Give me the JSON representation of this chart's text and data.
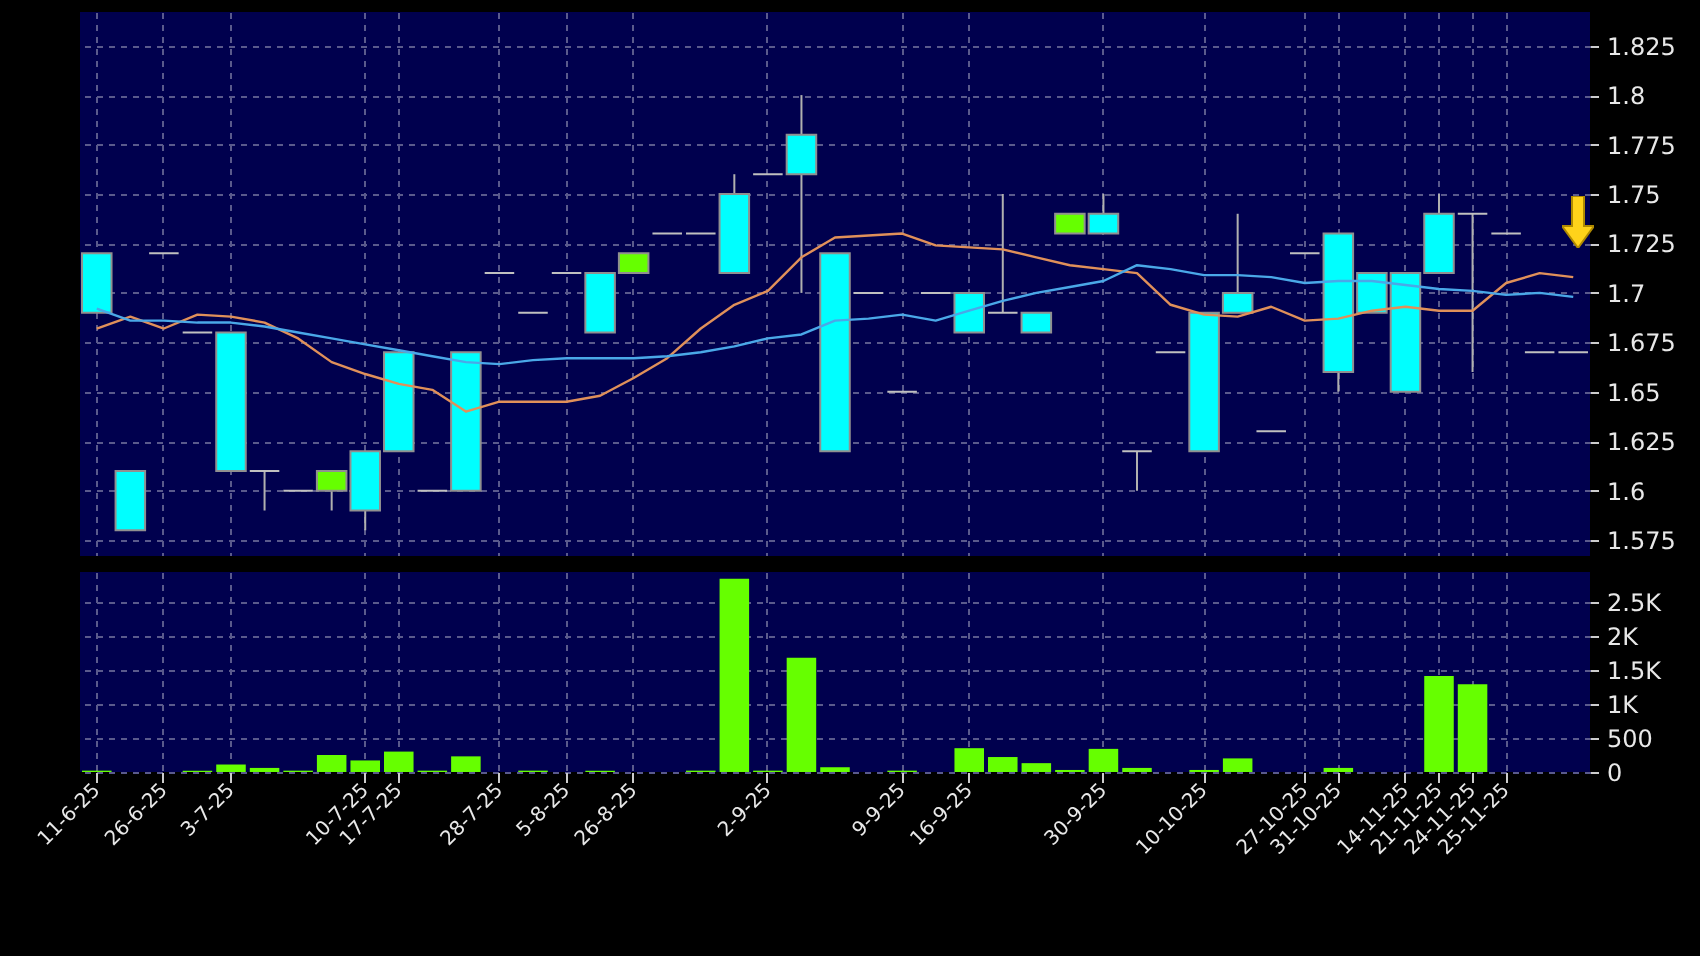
{
  "chart_data": [
    {
      "type": "candlestick",
      "categories": [
        null,
        null,
        null,
        null,
        null,
        null,
        null,
        null,
        null,
        null,
        null,
        null,
        null,
        null,
        null,
        null,
        null,
        null,
        null,
        null,
        null,
        null,
        null,
        null,
        null,
        null,
        null,
        null,
        null,
        null,
        null,
        null,
        null,
        null,
        null,
        null,
        null,
        null,
        null,
        null,
        null,
        null,
        null,
        null,
        null
      ],
      "ohlc": [
        [
          1.72,
          1.72,
          1.69,
          1.69
        ],
        [
          1.61,
          1.61,
          1.58,
          1.58
        ],
        [
          1.72,
          1.72,
          1.72,
          1.72
        ],
        [
          1.68,
          1.68,
          1.68,
          1.68
        ],
        [
          1.68,
          1.68,
          1.61,
          1.61
        ],
        [
          1.61,
          1.61,
          1.59,
          1.61
        ],
        [
          1.6,
          1.6,
          1.6,
          1.6
        ],
        [
          1.6,
          1.61,
          1.59,
          1.61
        ],
        [
          1.62,
          1.62,
          1.58,
          1.59
        ],
        [
          1.67,
          1.67,
          1.62,
          1.62
        ],
        [
          1.6,
          1.6,
          1.6,
          1.6
        ],
        [
          1.67,
          1.67,
          1.6,
          1.6
        ],
        [
          1.71,
          1.71,
          1.71,
          1.71
        ],
        [
          1.69,
          1.69,
          1.69,
          1.69
        ],
        [
          1.71,
          1.71,
          1.71,
          1.71
        ],
        [
          1.71,
          1.71,
          1.68,
          1.68
        ],
        [
          1.71,
          1.72,
          1.71,
          1.72
        ],
        [
          1.73,
          1.73,
          1.73,
          1.73
        ],
        [
          1.73,
          1.73,
          1.73,
          1.73
        ],
        [
          1.75,
          1.76,
          1.71,
          1.71
        ],
        [
          1.76,
          1.76,
          1.76,
          1.76
        ],
        [
          1.78,
          1.8,
          1.7,
          1.76
        ],
        [
          1.72,
          1.72,
          1.62,
          1.62
        ],
        [
          1.7,
          1.7,
          1.7,
          1.7
        ],
        [
          1.65,
          1.65,
          1.65,
          1.65
        ],
        [
          1.7,
          1.7,
          1.7,
          1.7
        ],
        [
          1.7,
          1.7,
          1.68,
          1.68
        ],
        [
          1.69,
          1.75,
          1.69,
          1.69
        ],
        [
          1.69,
          1.69,
          1.68,
          1.68
        ],
        [
          1.73,
          1.74,
          1.73,
          1.74
        ],
        [
          1.74,
          1.75,
          1.73,
          1.73
        ],
        [
          1.62,
          1.62,
          1.6,
          1.62
        ],
        [
          1.67,
          1.67,
          1.67,
          1.67
        ],
        [
          1.69,
          1.69,
          1.62,
          1.62
        ],
        [
          1.7,
          1.74,
          1.69,
          1.69
        ],
        [
          1.63,
          1.63,
          1.63,
          1.63
        ],
        [
          1.72,
          1.72,
          1.72,
          1.72
        ],
        [
          1.73,
          1.73,
          1.65,
          1.66
        ],
        [
          1.71,
          1.71,
          1.69,
          1.69
        ],
        [
          1.71,
          1.71,
          1.65,
          1.65
        ],
        [
          1.74,
          1.75,
          1.71,
          1.71
        ],
        [
          1.74,
          1.74,
          1.66,
          1.74
        ],
        [
          1.73,
          1.73,
          1.73,
          1.73
        ],
        [
          1.67,
          1.67,
          1.67,
          1.67
        ],
        [
          1.67,
          1.67,
          1.67,
          1.67
        ]
      ],
      "colors": [
        "#00ffff",
        "#00ffff",
        "#c0c0c0",
        "#c0c0c0",
        "#00ffff",
        "#c0c0c0",
        "#c0c0c0",
        "#66ff00",
        "#00ffff",
        "#00ffff",
        "#c0c0c0",
        "#00ffff",
        "#c0c0c0",
        "#c0c0c0",
        "#c0c0c0",
        "#00ffff",
        "#66ff00",
        "#c0c0c0",
        "#c0c0c0",
        "#00ffff",
        "#c0c0c0",
        "#00ffff",
        "#00ffff",
        "#c0c0c0",
        "#c0c0c0",
        "#c0c0c0",
        "#00ffff",
        "#c0c0c0",
        "#00ffff",
        "#66ff00",
        "#00ffff",
        "#c0c0c0",
        "#c0c0c0",
        "#00ffff",
        "#00ffff",
        "#c0c0c0",
        "#c0c0c0",
        "#00ffff",
        "#00ffff",
        "#00ffff",
        "#00ffff",
        "#c0c0c0",
        "#c0c0c0",
        "#c0c0c0",
        "#c0c0c0"
      ],
      "series": [
        {
          "type": "line",
          "color": "#e0905a",
          "values": [
            1.682,
            1.688,
            1.682,
            1.689,
            1.688,
            1.685,
            1.677,
            1.665,
            1.659,
            1.654,
            1.651,
            1.64,
            1.645,
            1.645,
            1.645,
            1.648,
            1.657,
            1.667,
            1.682,
            1.694,
            1.701,
            1.718,
            1.728,
            1.729,
            1.73,
            1.724,
            1.723,
            1.722,
            1.718,
            1.714,
            1.712,
            1.71,
            1.694,
            1.689,
            1.688,
            1.693,
            1.686,
            1.687,
            1.691,
            1.693,
            1.691,
            1.691,
            1.705,
            1.71,
            1.708
          ]
        },
        {
          "type": "line",
          "color": "#4aa8e8",
          "values": [
            1.692,
            1.686,
            1.686,
            1.685,
            1.685,
            1.683,
            1.68,
            1.677,
            1.674,
            1.671,
            1.668,
            1.665,
            1.664,
            1.666,
            1.667,
            1.667,
            1.667,
            1.668,
            1.67,
            1.673,
            1.677,
            1.679,
            1.686,
            1.687,
            1.689,
            1.686,
            1.691,
            1.696,
            1.7,
            1.703,
            1.706,
            1.714,
            1.712,
            1.709,
            1.709,
            1.708,
            1.705,
            1.706,
            1.706,
            1.704,
            1.702,
            1.701,
            1.699,
            1.7,
            1.698
          ]
        }
      ],
      "ylim": [
        1.567,
        1.842
      ],
      "yticks": [
        1.575,
        1.6,
        1.625,
        1.65,
        1.675,
        1.7,
        1.725,
        1.75,
        1.775,
        1.8,
        1.825
      ],
      "grid": true,
      "tick_labels": "y"
    },
    {
      "type": "bar",
      "categories": [
        "11-6-25",
        null,
        "26-6-25",
        null,
        "3-7-25",
        null,
        null,
        null,
        "10-7-25",
        "17-7-25",
        null,
        null,
        "28-7-25",
        null,
        "5-8-25",
        null,
        "26-8-25",
        null,
        null,
        null,
        "2-9-25",
        null,
        null,
        null,
        "9-9-25",
        null,
        "16-9-25",
        null,
        null,
        null,
        "30-9-25",
        null,
        null,
        "10-10-25",
        null,
        null,
        "27-10-25",
        "31-10-25",
        null,
        "14-11-25",
        "21-11-25",
        "24-11-25",
        "25-11-25",
        null,
        null
      ],
      "values": [
        20,
        0,
        0,
        20,
        110,
        60,
        20,
        250,
        170,
        300,
        20,
        230,
        0,
        20,
        0,
        20,
        0,
        0,
        20,
        2840,
        20,
        1680,
        70,
        0,
        20,
        0,
        350,
        220,
        130,
        30,
        340,
        60,
        0,
        30,
        200,
        0,
        0,
        60,
        0,
        0,
        1410,
        1290,
        0,
        0,
        0
      ],
      "color": "#66ff00",
      "ylim": [
        0,
        2940
      ],
      "yticks": [
        0,
        500,
        {
          "value": 1000,
          "label": "1K"
        },
        {
          "value": 1500,
          "label": "1.5K"
        },
        {
          "value": 2000,
          "label": "2K"
        },
        {
          "value": 2500,
          "label": "2.5K"
        }
      ],
      "grid": true
    }
  ]
}
